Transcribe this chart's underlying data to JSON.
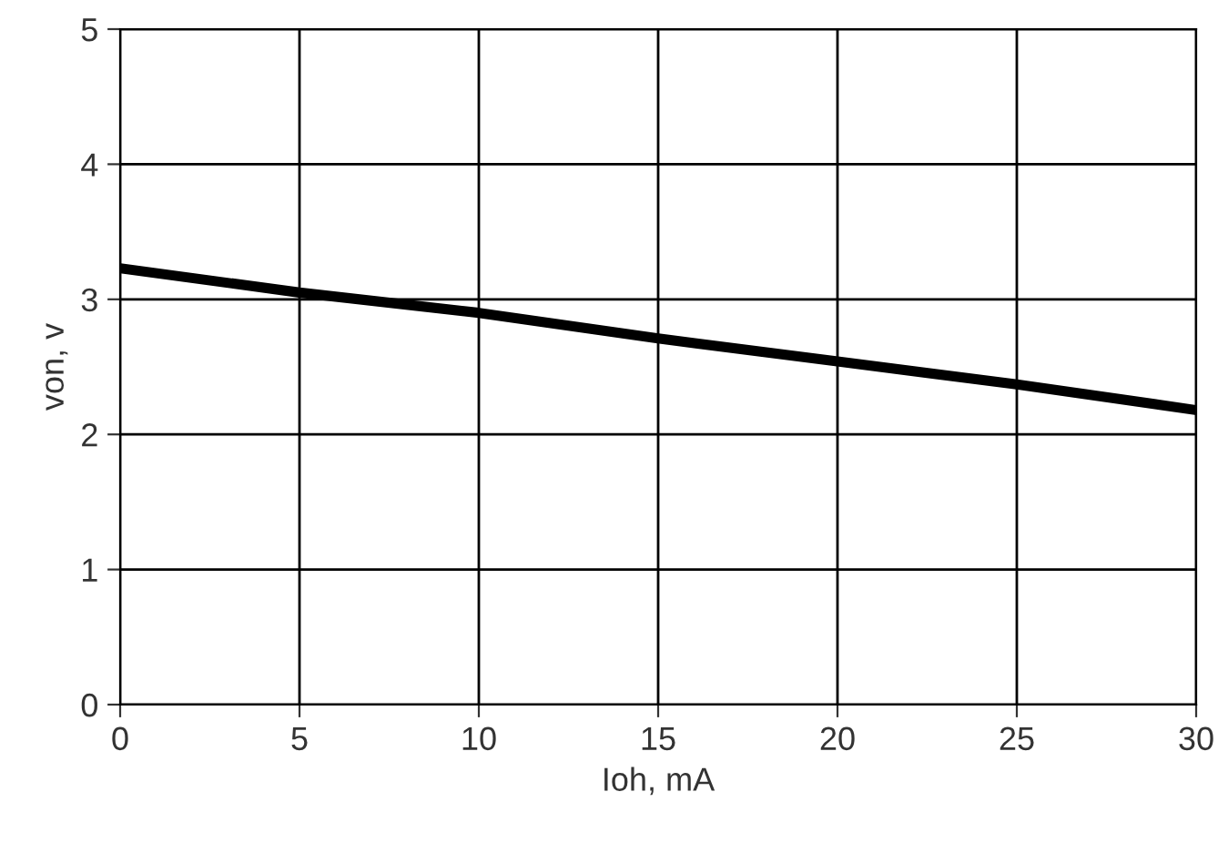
{
  "chart_data": {
    "type": "line",
    "xlabel": "Ioh, mA",
    "ylabel": "von, v",
    "x": [
      0,
      5,
      10,
      15,
      20,
      25,
      30
    ],
    "series": [
      {
        "color": "#000000",
        "values": [
          3.23,
          3.05,
          2.9,
          2.71,
          2.54,
          2.37,
          2.18
        ]
      }
    ],
    "xlim": [
      0,
      30
    ],
    "ylim": [
      0,
      5
    ],
    "xticks": [
      0,
      5,
      10,
      15,
      20,
      25,
      30
    ],
    "yticks": [
      0,
      1,
      2,
      3,
      4,
      5
    ],
    "grid": true,
    "legend": false,
    "marker": "none",
    "line_style": "solid"
  }
}
